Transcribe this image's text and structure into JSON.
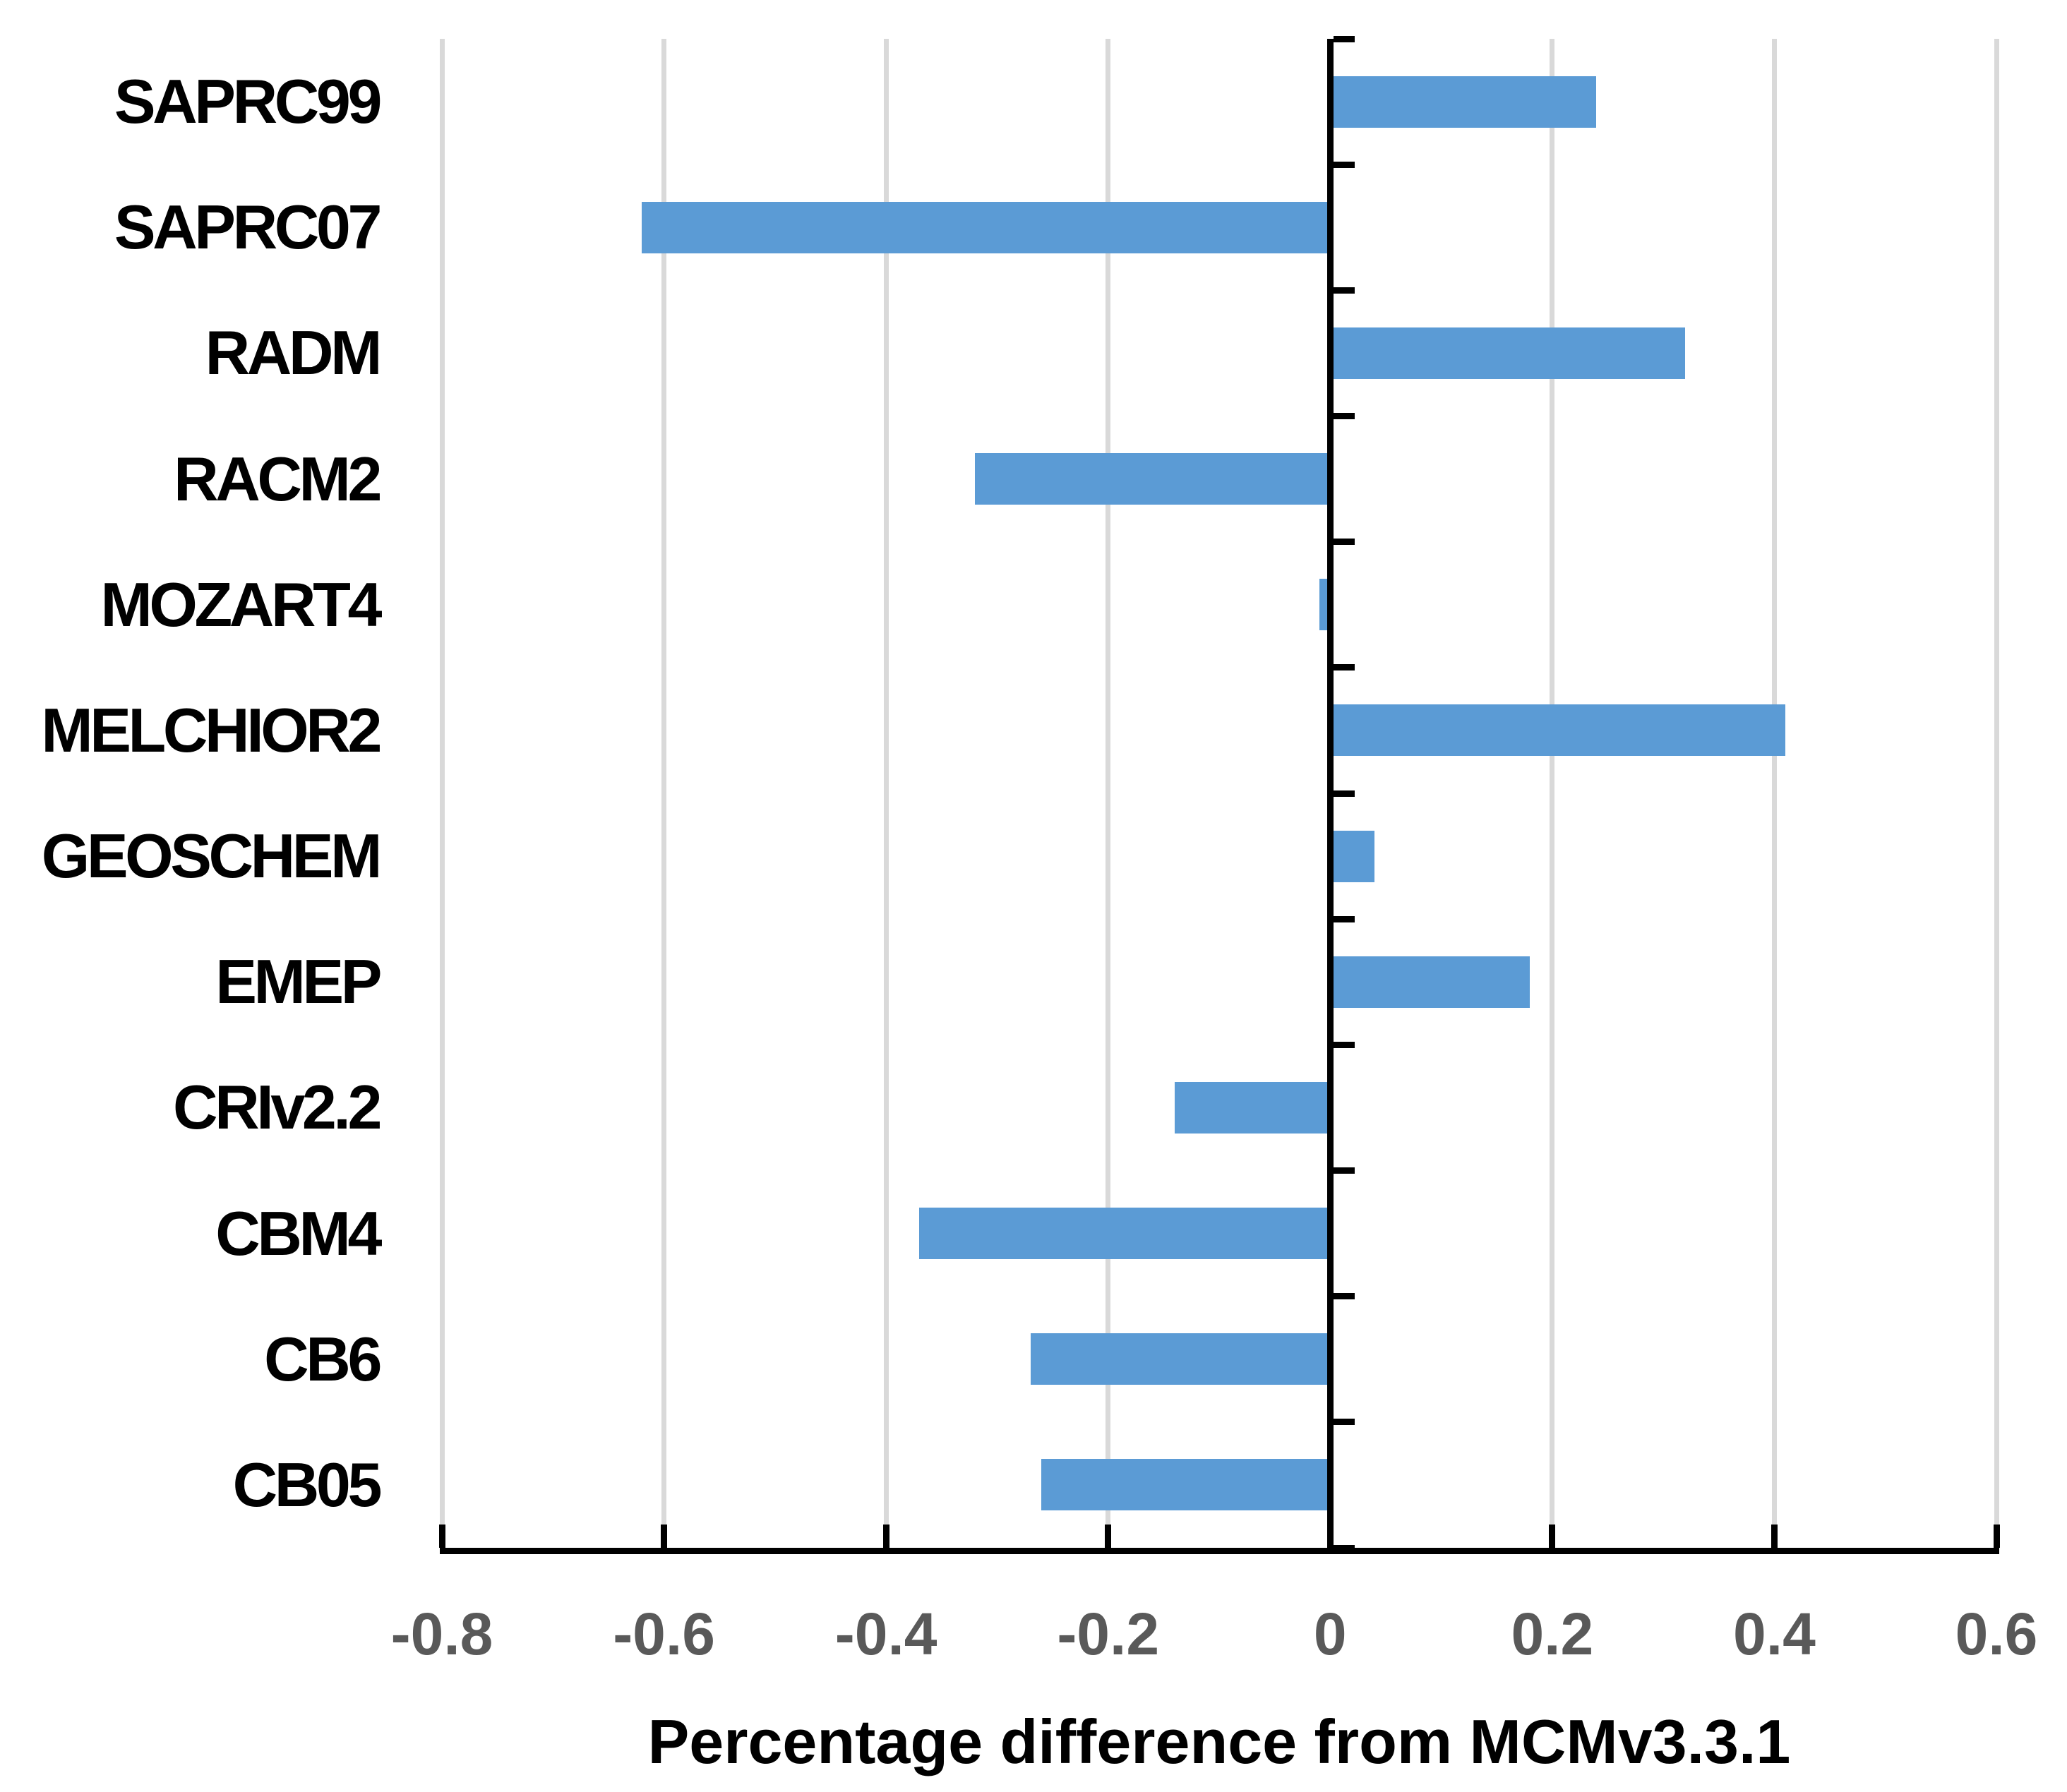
{
  "chart_data": {
    "type": "bar",
    "orientation": "horizontal",
    "title": "",
    "xlabel": "Percentage difference from MCMv3.3.1",
    "ylabel": "",
    "categories": [
      "SAPRC99",
      "SAPRC07",
      "RADM",
      "RACM2",
      "MOZART4",
      "MELCHIOR2",
      "GEOSCHEM",
      "EMEP",
      "CRIv2.2",
      "CBM4",
      "CB6",
      "CB05"
    ],
    "values": [
      0.24,
      -0.62,
      0.32,
      -0.32,
      -0.01,
      0.41,
      0.04,
      0.18,
      -0.14,
      -0.37,
      -0.27,
      -0.26
    ],
    "xlim": [
      -0.8,
      0.6
    ],
    "xticks": [
      -0.8,
      -0.6,
      -0.4,
      -0.2,
      0,
      0.2,
      0.4,
      0.6
    ],
    "xtick_labels": [
      "-0.8",
      "-0.6",
      "-0.4",
      "-0.2",
      "0",
      "0.2",
      "0.4",
      "0.6"
    ],
    "grid": true,
    "legend_position": "none",
    "colors": {
      "bar": "#5B9BD5",
      "gridline": "#D9D9D9",
      "axis": "#000000",
      "tick_label": "#595959",
      "category_label": "#000000",
      "axis_title": "#000000",
      "background": "#FFFFFF"
    }
  }
}
